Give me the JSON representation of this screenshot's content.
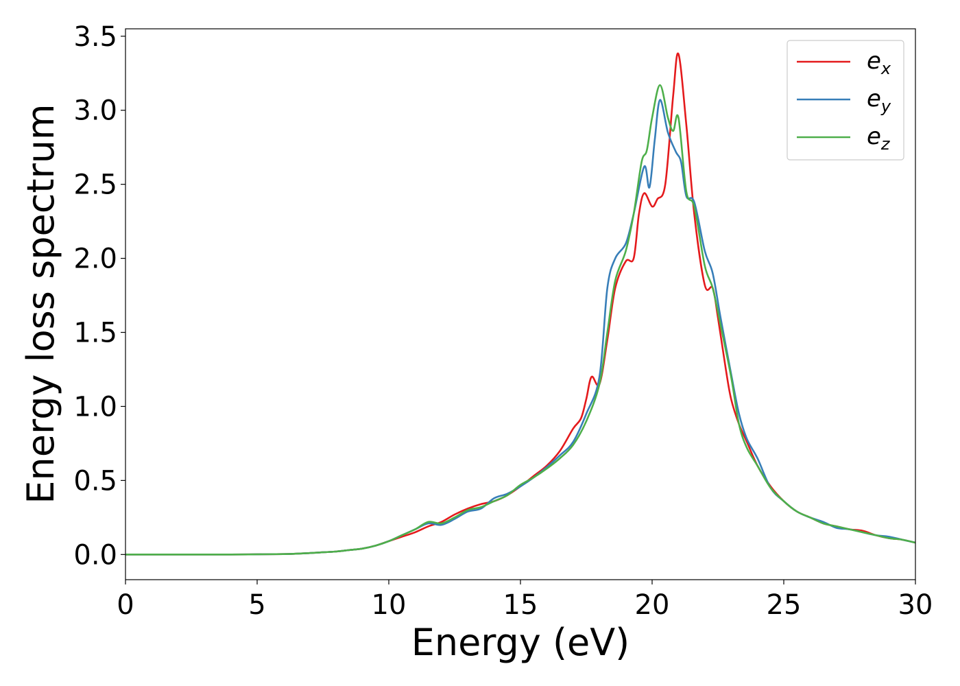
{
  "chart_data": {
    "type": "line",
    "xlabel": "Energy (eV)",
    "ylabel": "Energy loss spectrum",
    "xlim": [
      0,
      30
    ],
    "ylim": [
      -0.17,
      3.55
    ],
    "xticks": [
      0,
      5,
      10,
      15,
      20,
      25,
      30
    ],
    "xtick_labels": [
      "0",
      "5",
      "10",
      "15",
      "20",
      "25",
      "30"
    ],
    "yticks": [
      0.0,
      0.5,
      1.0,
      1.5,
      2.0,
      2.5,
      3.0,
      3.5
    ],
    "ytick_labels": [
      "0.0",
      "0.5",
      "1.0",
      "1.5",
      "2.0",
      "2.5",
      "3.0",
      "3.5"
    ],
    "grid": false,
    "legend_position": "top-right",
    "series": [
      {
        "name": "e",
        "subscript": "x",
        "color": "#e41a1c",
        "x": [
          0,
          2,
          4,
          6,
          7,
          7.5,
          8,
          8.5,
          9,
          9.5,
          10,
          10.5,
          11,
          11.5,
          12,
          12.5,
          13,
          13.5,
          14,
          14.5,
          15,
          15.5,
          16,
          16.5,
          17,
          17.3,
          17.5,
          17.7,
          18,
          18.3,
          18.6,
          19,
          19.3,
          19.5,
          19.7,
          20,
          20.2,
          20.5,
          20.8,
          21,
          21.3,
          21.6,
          22,
          22.3,
          22.5,
          22.8,
          23,
          23.3,
          23.6,
          24,
          24.5,
          25,
          25.5,
          26,
          26.5,
          27,
          27.5,
          28,
          28.5,
          29,
          29.5,
          30
        ],
        "y": [
          0.0,
          0.0,
          0.0,
          0.003,
          0.01,
          0.015,
          0.02,
          0.03,
          0.04,
          0.06,
          0.09,
          0.12,
          0.15,
          0.19,
          0.22,
          0.27,
          0.31,
          0.34,
          0.36,
          0.4,
          0.46,
          0.53,
          0.6,
          0.7,
          0.85,
          0.92,
          1.05,
          1.2,
          1.15,
          1.45,
          1.8,
          1.98,
          2.0,
          2.3,
          2.44,
          2.35,
          2.4,
          2.5,
          3.1,
          3.38,
          2.9,
          2.3,
          1.82,
          1.8,
          1.6,
          1.25,
          1.05,
          0.88,
          0.76,
          0.6,
          0.46,
          0.36,
          0.29,
          0.25,
          0.21,
          0.19,
          0.17,
          0.16,
          0.13,
          0.11,
          0.1,
          0.08
        ]
      },
      {
        "name": "e",
        "subscript": "y",
        "color": "#377eb8",
        "x": [
          0,
          2,
          4,
          6,
          7,
          7.5,
          8,
          8.5,
          9,
          9.5,
          10,
          10.5,
          11,
          11.5,
          12,
          12.5,
          13,
          13.5,
          14,
          14.5,
          15,
          15.5,
          16,
          16.5,
          17,
          17.5,
          18,
          18.3,
          18.6,
          19,
          19.3,
          19.7,
          19.9,
          20.1,
          20.3,
          20.6,
          20.9,
          21.1,
          21.3,
          21.6,
          22,
          22.3,
          22.6,
          23,
          23.3,
          23.6,
          24,
          24.5,
          25,
          25.5,
          26,
          26.5,
          27,
          27.5,
          28,
          28.5,
          29,
          29.5,
          30
        ],
        "y": [
          0.0,
          0.0,
          0.0,
          0.003,
          0.01,
          0.015,
          0.02,
          0.03,
          0.04,
          0.06,
          0.09,
          0.13,
          0.17,
          0.21,
          0.2,
          0.24,
          0.29,
          0.31,
          0.38,
          0.41,
          0.46,
          0.52,
          0.59,
          0.67,
          0.76,
          0.95,
          1.2,
          1.8,
          2.0,
          2.1,
          2.3,
          2.62,
          2.48,
          2.8,
          3.07,
          2.85,
          2.72,
          2.65,
          2.42,
          2.38,
          2.05,
          1.9,
          1.6,
          1.22,
          0.95,
          0.78,
          0.65,
          0.45,
          0.36,
          0.29,
          0.25,
          0.22,
          0.18,
          0.17,
          0.15,
          0.13,
          0.12,
          0.1,
          0.08
        ]
      },
      {
        "name": "e",
        "subscript": "z",
        "color": "#4daf4a",
        "x": [
          0,
          2,
          4,
          6,
          7,
          7.5,
          8,
          8.5,
          9,
          9.5,
          10,
          10.5,
          11,
          11.5,
          12,
          12.5,
          13,
          13.5,
          14,
          14.5,
          15,
          15.5,
          16,
          16.5,
          17,
          17.5,
          18,
          18.3,
          18.6,
          19,
          19.3,
          19.6,
          19.8,
          20.0,
          20.3,
          20.6,
          20.8,
          21.0,
          21.3,
          21.6,
          22,
          22.3,
          22.6,
          23,
          23.3,
          23.6,
          24,
          24.5,
          25,
          25.5,
          26,
          26.5,
          27,
          27.5,
          28,
          28.5,
          29,
          29.5,
          30
        ],
        "y": [
          0.0,
          0.0,
          0.0,
          0.003,
          0.01,
          0.015,
          0.02,
          0.03,
          0.04,
          0.06,
          0.09,
          0.13,
          0.17,
          0.22,
          0.21,
          0.25,
          0.3,
          0.32,
          0.36,
          0.4,
          0.47,
          0.52,
          0.58,
          0.65,
          0.74,
          0.9,
          1.15,
          1.5,
          1.85,
          2.05,
          2.3,
          2.65,
          2.73,
          2.95,
          3.17,
          2.95,
          2.86,
          2.95,
          2.45,
          2.35,
          1.95,
          1.8,
          1.55,
          1.2,
          0.88,
          0.72,
          0.6,
          0.45,
          0.36,
          0.29,
          0.25,
          0.21,
          0.19,
          0.17,
          0.15,
          0.13,
          0.11,
          0.1,
          0.08
        ]
      }
    ]
  }
}
